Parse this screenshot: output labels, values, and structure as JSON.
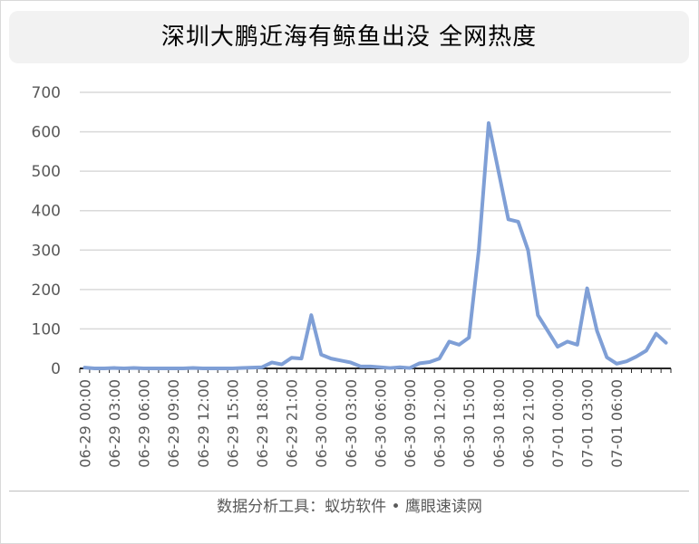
{
  "chart_data": {
    "type": "line",
    "title": "深圳大鹏近海有鲸鱼出没 全网热度",
    "xlabel": "",
    "ylabel": "",
    "ylim": [
      0,
      700
    ],
    "yticks": [
      0,
      100,
      200,
      300,
      400,
      500,
      600,
      700
    ],
    "grid": true,
    "legend": "none",
    "line_color": "#7f9fd6",
    "x_tick_labels": [
      "06-29 00:00",
      "06-29 03:00",
      "06-29 06:00",
      "06-29 09:00",
      "06-29 12:00",
      "06-29 15:00",
      "06-29 18:00",
      "06-29 21:00",
      "06-30 00:00",
      "06-30 03:00",
      "06-30 06:00",
      "06-30 09:00",
      "06-30 12:00",
      "06-30 15:00",
      "06-30 18:00",
      "06-30 21:00",
      "07-01 00:00",
      "07-01 03:00",
      "07-01 06:00"
    ],
    "series": [
      {
        "values": [
          2,
          0,
          0,
          1,
          0,
          1,
          0,
          0,
          0,
          0,
          0,
          1,
          0,
          0,
          0,
          0,
          1,
          2,
          3,
          15,
          10,
          27,
          25,
          135,
          35,
          25,
          20,
          15,
          5,
          5,
          3,
          1,
          3,
          1,
          13,
          16,
          25,
          68,
          60,
          78,
          300,
          622,
          500,
          378,
          372,
          300,
          135,
          95,
          55,
          68,
          60,
          203,
          95,
          28,
          12,
          18,
          30,
          45,
          88,
          65
        ]
      }
    ]
  },
  "footer": "数据分析工具：蚁坊软件 • 鹰眼速读网"
}
